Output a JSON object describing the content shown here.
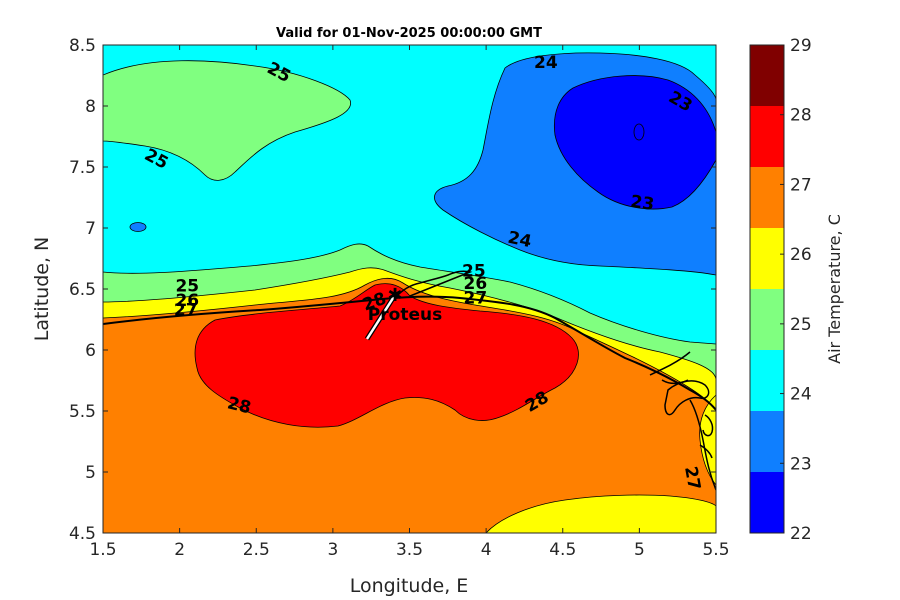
{
  "chart_data": {
    "type": "contour-map",
    "title": "Valid for 01-Nov-2025 00:00:00 GMT",
    "xlabel": "Longitude, E",
    "ylabel": "Latitude, N",
    "xlim": [
      1.5,
      5.5
    ],
    "ylim": [
      4.5,
      8.5
    ],
    "xticks": [
      "1.5",
      "2",
      "2.5",
      "3",
      "3.5",
      "4",
      "4.5",
      "5",
      "5.5"
    ],
    "yticks": [
      "4.5",
      "5",
      "5.5",
      "6",
      "6.5",
      "7",
      "7.5",
      "8",
      "8.5"
    ],
    "colorbar": {
      "label": "Air Temperature, C",
      "range": [
        22,
        29
      ],
      "ticks": [
        "22",
        "23",
        "24",
        "25",
        "26",
        "27",
        "28",
        "29"
      ],
      "colors": [
        "#0000ff",
        "#0f7fff",
        "#00ffff",
        "#80ff80",
        "#ffff00",
        "#ff8000",
        "#ff0000",
        "#800000"
      ]
    },
    "contour_labels": [
      {
        "text": "25",
        "lon": 1.85,
        "lat": 7.57,
        "angle": 28
      },
      {
        "text": "25",
        "lon": 2.65,
        "lat": 8.28,
        "angle": 28
      },
      {
        "text": "24",
        "lon": 4.39,
        "lat": 8.36,
        "angle": 0
      },
      {
        "text": "23",
        "lon": 5.27,
        "lat": 8.04,
        "angle": 30
      },
      {
        "text": "23",
        "lon": 5.02,
        "lat": 7.21,
        "angle": 8
      },
      {
        "text": "24",
        "lon": 4.22,
        "lat": 6.91,
        "angle": 12
      },
      {
        "text": "25",
        "lon": 2.05,
        "lat": 6.53,
        "angle": 0
      },
      {
        "text": "26",
        "lon": 2.05,
        "lat": 6.41,
        "angle": 0
      },
      {
        "text": "27",
        "lon": 2.04,
        "lat": 6.33,
        "angle": 0
      },
      {
        "text": "25",
        "lon": 3.92,
        "lat": 6.65,
        "angle": 0
      },
      {
        "text": "26",
        "lon": 3.93,
        "lat": 6.55,
        "angle": 0
      },
      {
        "text": "27",
        "lon": 3.93,
        "lat": 6.43,
        "angle": 0
      },
      {
        "text": "28",
        "lon": 3.27,
        "lat": 6.4,
        "angle": -20
      },
      {
        "text": "28",
        "lon": 2.39,
        "lat": 5.55,
        "angle": 14
      },
      {
        "text": "28",
        "lon": 4.33,
        "lat": 5.58,
        "angle": -30
      },
      {
        "text": "27",
        "lon": 5.35,
        "lat": 4.95,
        "angle": 80
      }
    ],
    "station": {
      "name": "Proteus",
      "lon": 3.42,
      "lat": 6.45
    }
  }
}
